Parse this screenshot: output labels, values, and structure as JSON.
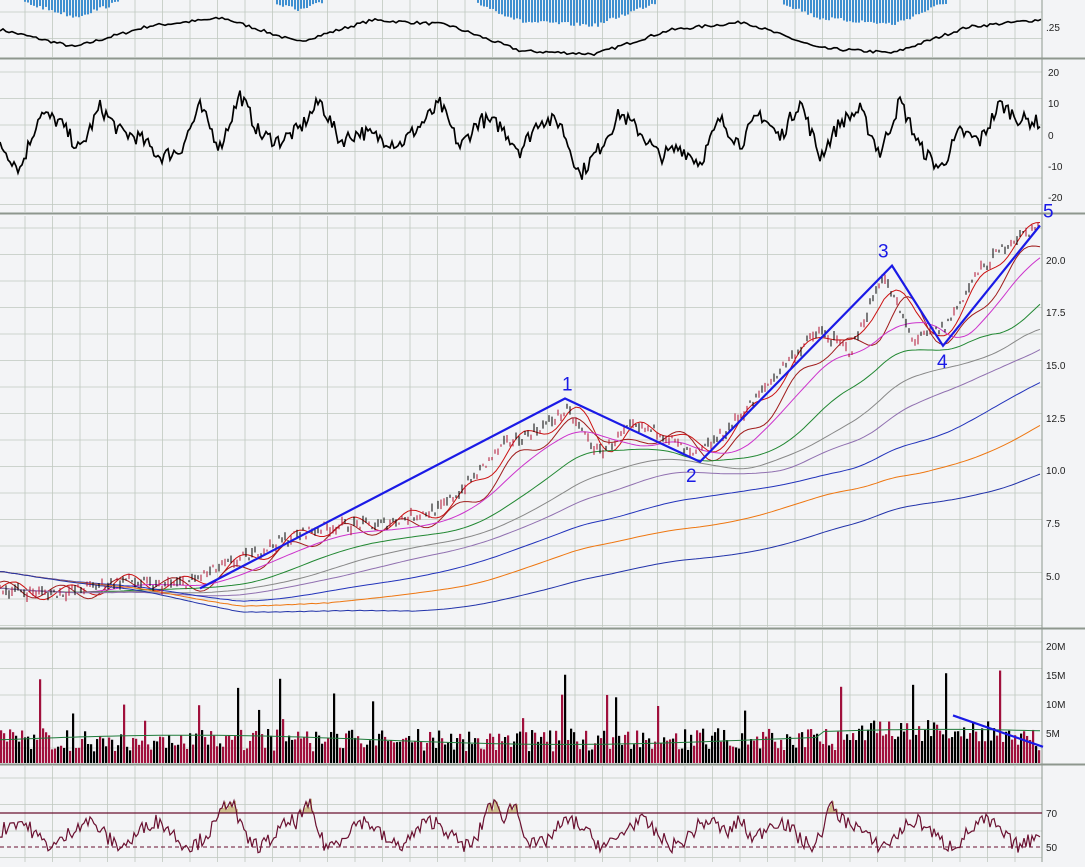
{
  "chart_data": [
    {
      "panel": "oscillator-top",
      "type": "line",
      "title": "",
      "y_tick_labels": [
        ".25"
      ],
      "series": [
        {
          "values": [
            0.55,
            0.2,
            0.62,
            0.78,
            0.3,
            0.74,
            0.65,
            0.12,
            0.06,
            0.54,
            0.7,
            0.18,
            0.08,
            0.6,
            0.75
          ]
        }
      ],
      "histogram_color": "#3f8fd0",
      "line_color": "#000000"
    },
    {
      "panel": "momentum",
      "type": "line",
      "ylim": [
        -20,
        20
      ],
      "y_tick_labels": [
        "20",
        "10",
        "0",
        "-10",
        "-20"
      ],
      "series": [
        {
          "x": [
            0,
            20,
            40,
            60,
            80,
            100,
            120,
            140,
            160,
            180,
            200,
            220,
            240,
            260,
            280,
            300,
            320,
            340,
            360,
            380,
            400,
            420,
            440,
            460,
            480,
            500,
            520,
            540,
            560,
            580,
            600,
            620,
            640,
            660,
            680,
            700,
            720,
            740,
            760,
            780,
            800,
            820,
            840,
            860,
            880,
            900,
            920,
            940,
            960,
            980,
            1000,
            1020,
            1040
          ],
          "values": [
            -2,
            -10,
            8,
            5,
            -4,
            10,
            2,
            0,
            -6,
            -4,
            10,
            -3,
            14,
            1,
            -1,
            3,
            12,
            -1,
            2,
            0,
            -2,
            4,
            11,
            -3,
            6,
            4,
            -4,
            6,
            5,
            -12,
            -3,
            8,
            2,
            -6,
            -3,
            -8,
            6,
            -2,
            8,
            0,
            12,
            -6,
            5,
            9,
            -5,
            12,
            -3,
            -10,
            2,
            -1,
            11,
            6,
            5
          ]
        }
      ],
      "line_color": "#000000"
    },
    {
      "panel": "price",
      "type": "line",
      "ylim": [
        3.6,
        22.6
      ],
      "y_tick_labels": [
        "20.0",
        "17.5",
        "15.0",
        "12.5",
        "10.0",
        "7.5",
        "5.0"
      ],
      "series": [
        {
          "values": [
            4.6,
            4.4,
            4.4,
            4.7,
            5.0,
            4.7,
            4.9,
            5.6,
            6.2,
            6.9,
            7.4,
            7.6,
            7.6,
            8.0,
            8.4,
            9.8,
            11.4,
            12.1,
            13.0,
            11.0,
            12.2,
            12.0,
            10.8,
            12.0,
            13.6,
            15.4,
            16.8,
            15.8,
            19.5,
            16.3,
            17.0,
            19.5,
            21.0,
            21.8
          ]
        }
      ],
      "candles": "red/black bars",
      "moving_average_colors": [
        "#cc1111",
        "#a01c1c",
        "#cc33cc",
        "#228833",
        "#888888",
        "#9070b0",
        "#2233bb",
        "#ee7711",
        "#2233aa"
      ],
      "wave_labels": [
        {
          "label": "1",
          "x": 565,
          "y": 13.6
        },
        {
          "label": "2",
          "x": 700,
          "y": 10.6
        },
        {
          "label": "3",
          "x": 892,
          "y": 19.9
        },
        {
          "label": "4",
          "x": 943,
          "y": 16.1
        },
        {
          "label": "5",
          "x": 1040,
          "y": 21.8
        }
      ],
      "wave_start": {
        "x": 200,
        "y": 4.6
      },
      "wave_color": "#1a1ae6"
    },
    {
      "panel": "volume",
      "type": "bar",
      "ylim": [
        0,
        24
      ],
      "y_tick_labels": [
        "20M",
        "15M",
        "10M",
        "5M"
      ],
      "bar_colors": [
        "#a0103c",
        "#000000"
      ],
      "moving_average_color": "#1f7a3a",
      "trendline": {
        "x": [
          953,
          1043
        ],
        "values": [
          8.2,
          2.8
        ]
      }
    },
    {
      "panel": "rsi",
      "type": "line",
      "y_tick_labels": [
        "70",
        "50"
      ],
      "overbought_level": 70,
      "line_color": "#6a1030",
      "fill_color": "#cfc08f"
    }
  ]
}
